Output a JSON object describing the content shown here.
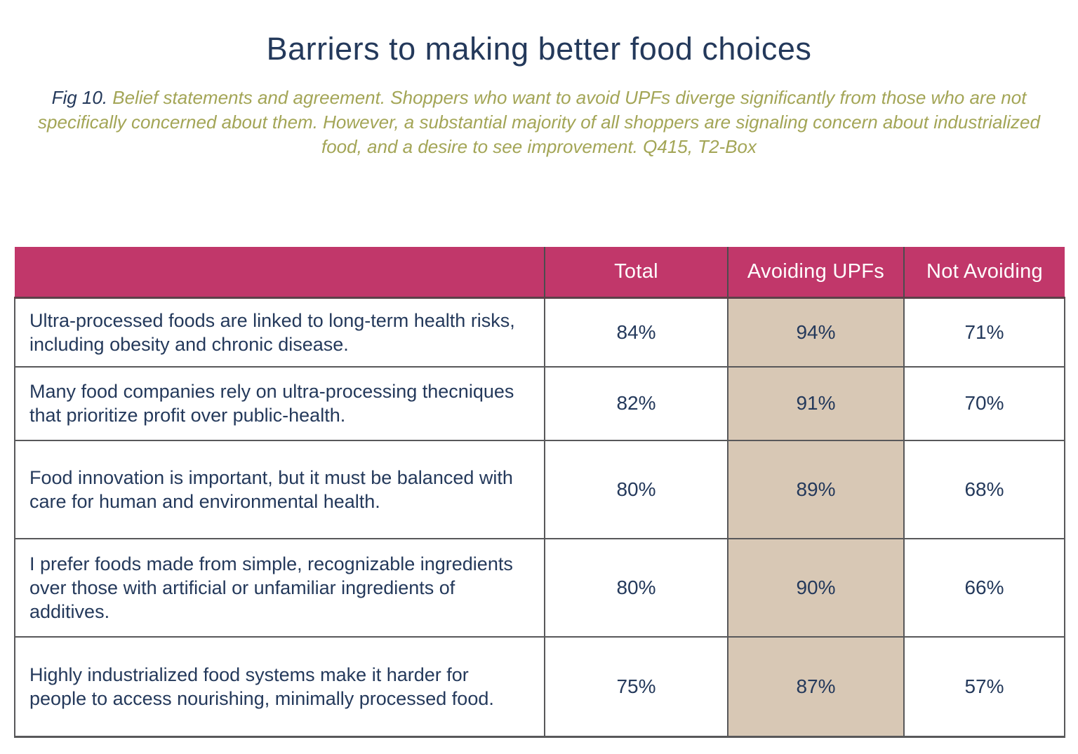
{
  "title": "Barriers to making better food choices",
  "caption": {
    "fig_label": "Fig 10.",
    "text": " Belief statements and agreement. Shoppers who want to avoid UPFs diverge significantly from those who are not specifically concerned about them. However, a substantial majority of all shoppers are signaling concern about industrialized food, and a desire to see improvement. Q415, T2-Box"
  },
  "colors": {
    "header_bg": "#c1376a",
    "highlight_column_bg": "#d8c8b5",
    "navy_text": "#24395b",
    "olive_caption": "#a3a556",
    "grid_border": "#58585a"
  },
  "chart_data": {
    "type": "table",
    "title": "Barriers to making better food choices",
    "columns": [
      "",
      "Total",
      "Avoiding UPFs",
      "Not Avoiding"
    ],
    "highlight_column": "Avoiding UPFs",
    "rows": [
      {
        "statement": "Ultra-processed foods are linked to long-term health risks, including obesity and chronic disease.",
        "total": "84%",
        "avoiding_upfs": "94%",
        "not_avoiding": "71%"
      },
      {
        "statement": "Many food companies rely on ultra-processing thecniques that prioritize profit over public-health.",
        "total": "82%",
        "avoiding_upfs": "91%",
        "not_avoiding": "70%"
      },
      {
        "statement": "Food innovation is important, but it must be balanced with care for human and environmental health.",
        "total": "80%",
        "avoiding_upfs": "89%",
        "not_avoiding": "68%"
      },
      {
        "statement": "I prefer foods made from simple, recognizable ingredients over those with artificial or unfamiliar ingredients of additives.",
        "total": "80%",
        "avoiding_upfs": "90%",
        "not_avoiding": "66%"
      },
      {
        "statement": "Highly industrialized food systems make it harder for people to access nourishing, minimally processed food.",
        "total": "75%",
        "avoiding_upfs": "87%",
        "not_avoiding": "57%"
      }
    ]
  }
}
